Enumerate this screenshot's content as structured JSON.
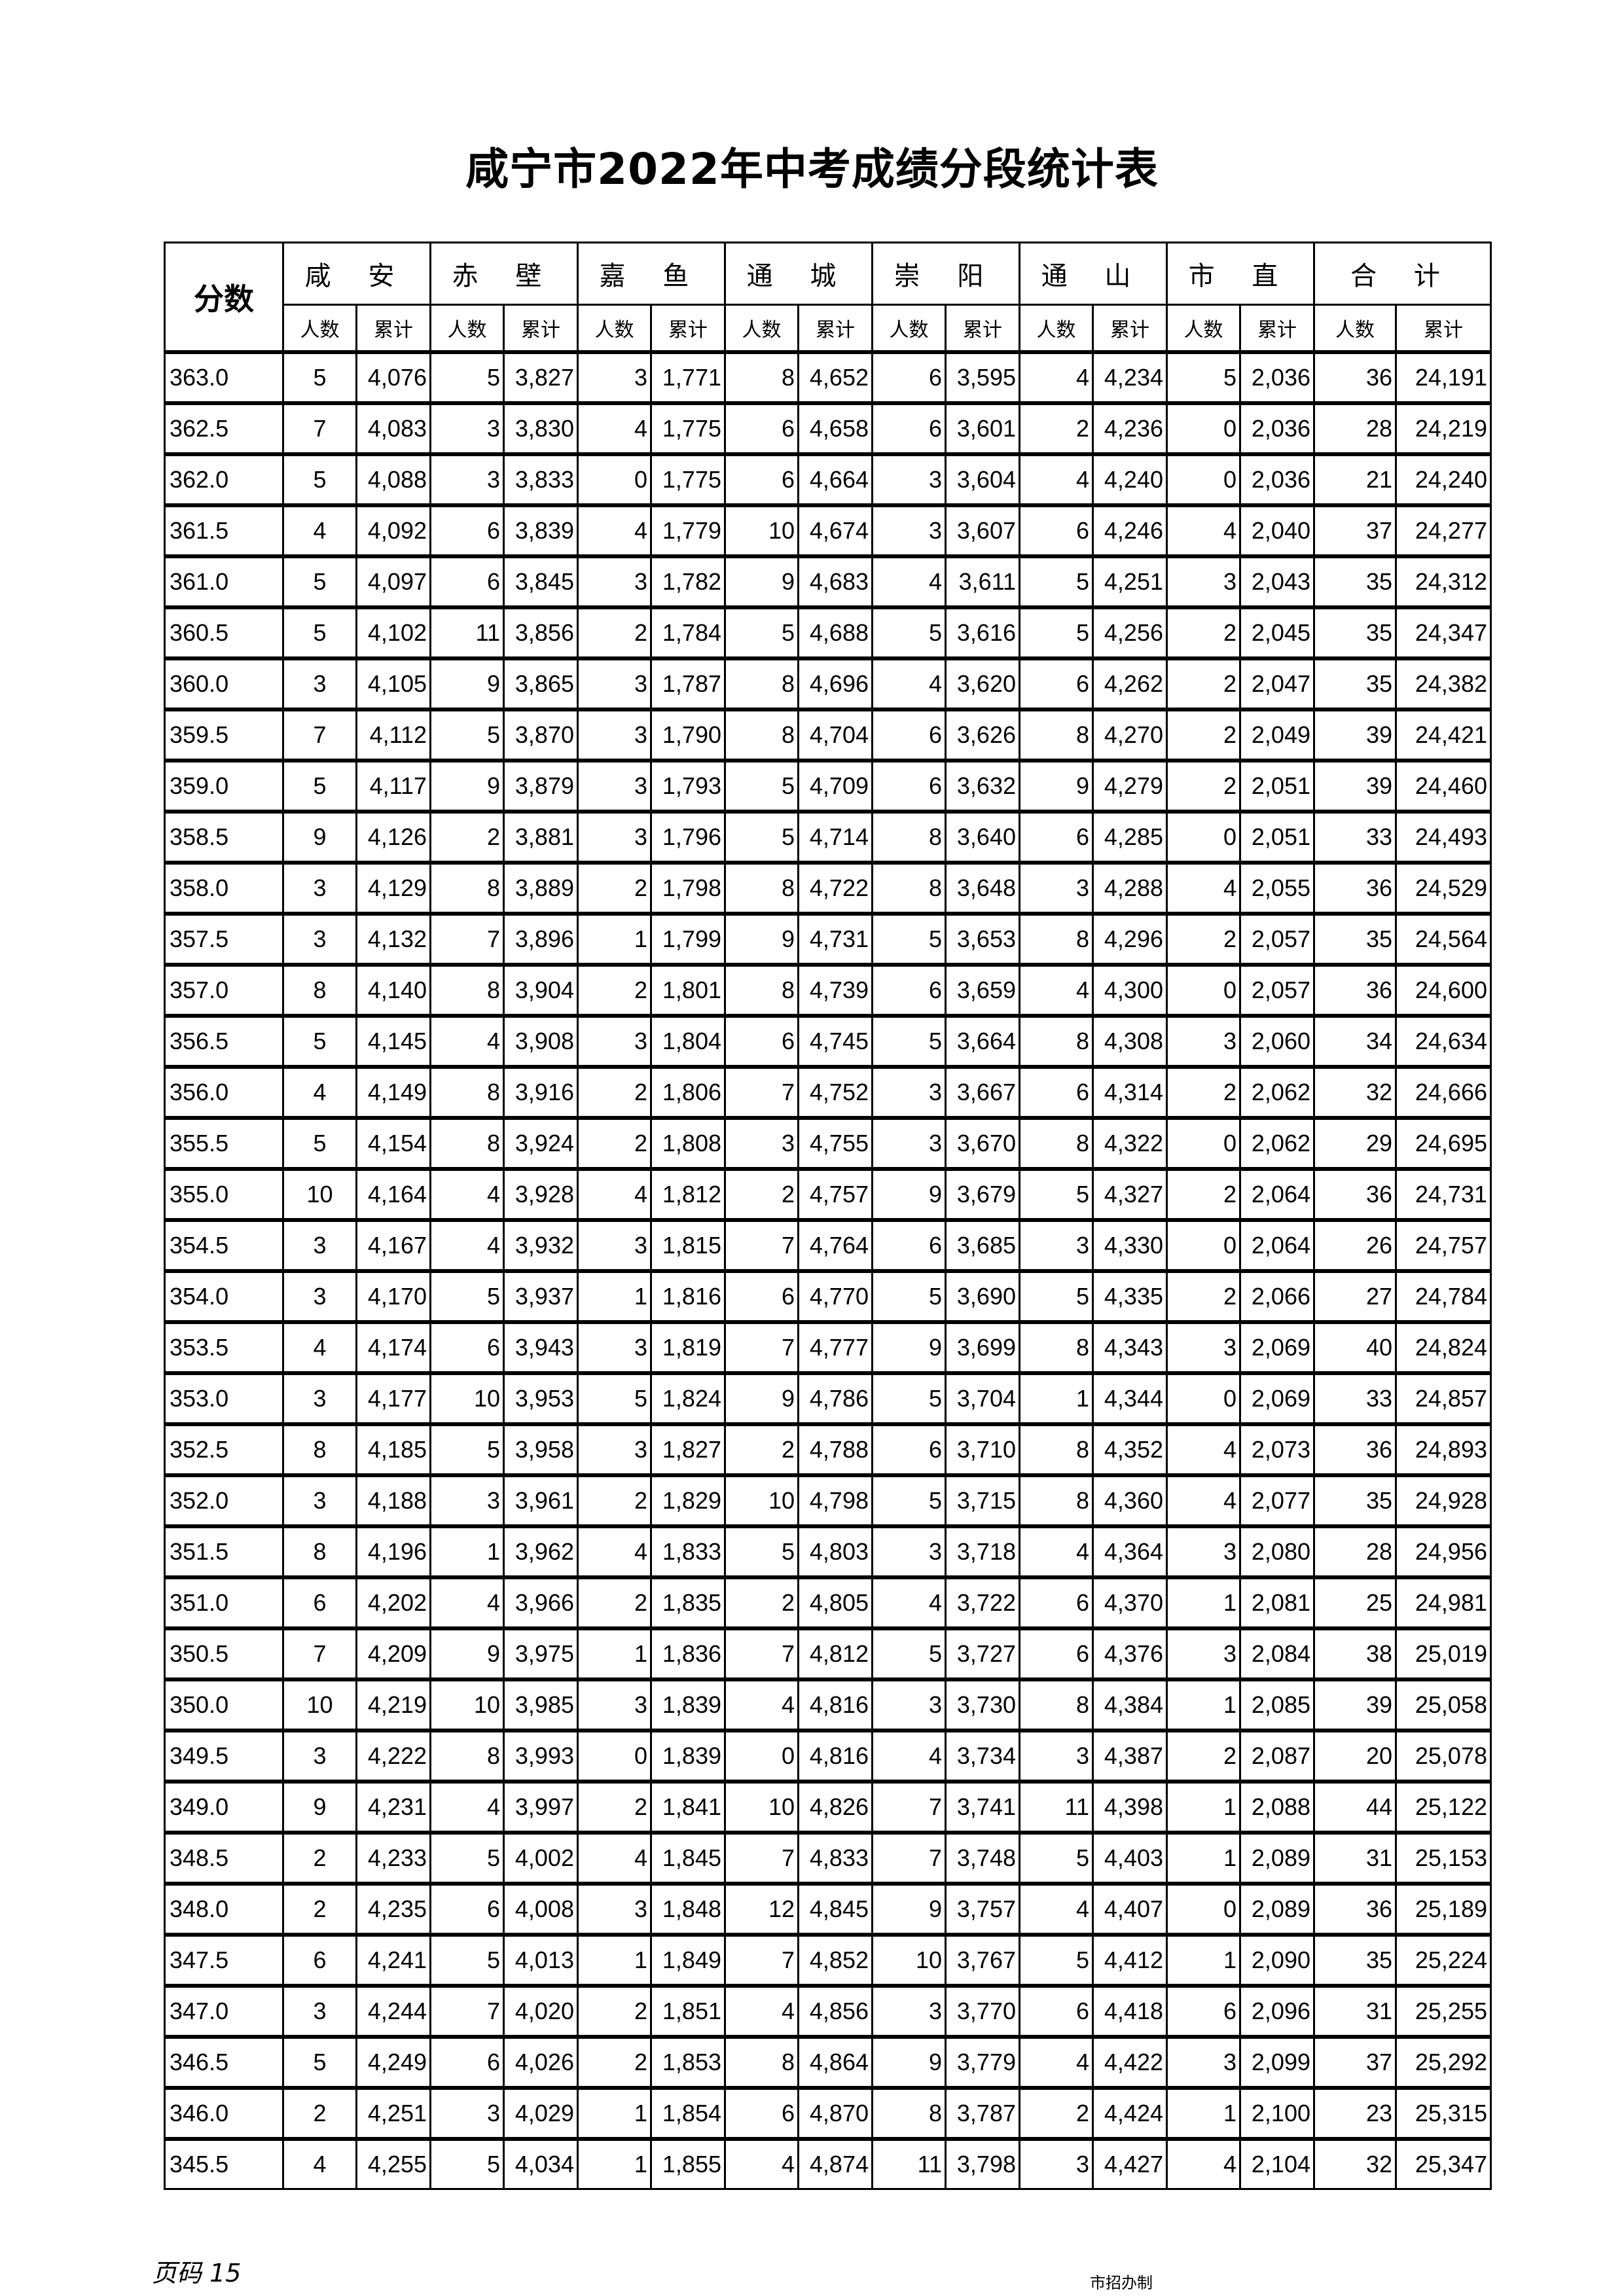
{
  "title": "咸宁市2022年中考成绩分段统计表",
  "table": {
    "score_header": "分数",
    "regions": [
      "咸 安",
      "赤 壁",
      "嘉 鱼",
      "通 城",
      "崇 阳",
      "通 山",
      "市 直",
      "合 计"
    ],
    "sub_headers": [
      "人数",
      "累计"
    ],
    "rows": [
      [
        "363.0",
        "5",
        "4,076",
        "5",
        "3,827",
        "3",
        "1,771",
        "8",
        "4,652",
        "6",
        "3,595",
        "4",
        "4,234",
        "5",
        "2,036",
        "36",
        "24,191"
      ],
      [
        "362.5",
        "7",
        "4,083",
        "3",
        "3,830",
        "4",
        "1,775",
        "6",
        "4,658",
        "6",
        "3,601",
        "2",
        "4,236",
        "0",
        "2,036",
        "28",
        "24,219"
      ],
      [
        "362.0",
        "5",
        "4,088",
        "3",
        "3,833",
        "0",
        "1,775",
        "6",
        "4,664",
        "3",
        "3,604",
        "4",
        "4,240",
        "0",
        "2,036",
        "21",
        "24,240"
      ],
      [
        "361.5",
        "4",
        "4,092",
        "6",
        "3,839",
        "4",
        "1,779",
        "10",
        "4,674",
        "3",
        "3,607",
        "6",
        "4,246",
        "4",
        "2,040",
        "37",
        "24,277"
      ],
      [
        "361.0",
        "5",
        "4,097",
        "6",
        "3,845",
        "3",
        "1,782",
        "9",
        "4,683",
        "4",
        "3,611",
        "5",
        "4,251",
        "3",
        "2,043",
        "35",
        "24,312"
      ],
      [
        "360.5",
        "5",
        "4,102",
        "11",
        "3,856",
        "2",
        "1,784",
        "5",
        "4,688",
        "5",
        "3,616",
        "5",
        "4,256",
        "2",
        "2,045",
        "35",
        "24,347"
      ],
      [
        "360.0",
        "3",
        "4,105",
        "9",
        "3,865",
        "3",
        "1,787",
        "8",
        "4,696",
        "4",
        "3,620",
        "6",
        "4,262",
        "2",
        "2,047",
        "35",
        "24,382"
      ],
      [
        "359.5",
        "7",
        "4,112",
        "5",
        "3,870",
        "3",
        "1,790",
        "8",
        "4,704",
        "6",
        "3,626",
        "8",
        "4,270",
        "2",
        "2,049",
        "39",
        "24,421"
      ],
      [
        "359.0",
        "5",
        "4,117",
        "9",
        "3,879",
        "3",
        "1,793",
        "5",
        "4,709",
        "6",
        "3,632",
        "9",
        "4,279",
        "2",
        "2,051",
        "39",
        "24,460"
      ],
      [
        "358.5",
        "9",
        "4,126",
        "2",
        "3,881",
        "3",
        "1,796",
        "5",
        "4,714",
        "8",
        "3,640",
        "6",
        "4,285",
        "0",
        "2,051",
        "33",
        "24,493"
      ],
      [
        "358.0",
        "3",
        "4,129",
        "8",
        "3,889",
        "2",
        "1,798",
        "8",
        "4,722",
        "8",
        "3,648",
        "3",
        "4,288",
        "4",
        "2,055",
        "36",
        "24,529"
      ],
      [
        "357.5",
        "3",
        "4,132",
        "7",
        "3,896",
        "1",
        "1,799",
        "9",
        "4,731",
        "5",
        "3,653",
        "8",
        "4,296",
        "2",
        "2,057",
        "35",
        "24,564"
      ],
      [
        "357.0",
        "8",
        "4,140",
        "8",
        "3,904",
        "2",
        "1,801",
        "8",
        "4,739",
        "6",
        "3,659",
        "4",
        "4,300",
        "0",
        "2,057",
        "36",
        "24,600"
      ],
      [
        "356.5",
        "5",
        "4,145",
        "4",
        "3,908",
        "3",
        "1,804",
        "6",
        "4,745",
        "5",
        "3,664",
        "8",
        "4,308",
        "3",
        "2,060",
        "34",
        "24,634"
      ],
      [
        "356.0",
        "4",
        "4,149",
        "8",
        "3,916",
        "2",
        "1,806",
        "7",
        "4,752",
        "3",
        "3,667",
        "6",
        "4,314",
        "2",
        "2,062",
        "32",
        "24,666"
      ],
      [
        "355.5",
        "5",
        "4,154",
        "8",
        "3,924",
        "2",
        "1,808",
        "3",
        "4,755",
        "3",
        "3,670",
        "8",
        "4,322",
        "0",
        "2,062",
        "29",
        "24,695"
      ],
      [
        "355.0",
        "10",
        "4,164",
        "4",
        "3,928",
        "4",
        "1,812",
        "2",
        "4,757",
        "9",
        "3,679",
        "5",
        "4,327",
        "2",
        "2,064",
        "36",
        "24,731"
      ],
      [
        "354.5",
        "3",
        "4,167",
        "4",
        "3,932",
        "3",
        "1,815",
        "7",
        "4,764",
        "6",
        "3,685",
        "3",
        "4,330",
        "0",
        "2,064",
        "26",
        "24,757"
      ],
      [
        "354.0",
        "3",
        "4,170",
        "5",
        "3,937",
        "1",
        "1,816",
        "6",
        "4,770",
        "5",
        "3,690",
        "5",
        "4,335",
        "2",
        "2,066",
        "27",
        "24,784"
      ],
      [
        "353.5",
        "4",
        "4,174",
        "6",
        "3,943",
        "3",
        "1,819",
        "7",
        "4,777",
        "9",
        "3,699",
        "8",
        "4,343",
        "3",
        "2,069",
        "40",
        "24,824"
      ],
      [
        "353.0",
        "3",
        "4,177",
        "10",
        "3,953",
        "5",
        "1,824",
        "9",
        "4,786",
        "5",
        "3,704",
        "1",
        "4,344",
        "0",
        "2,069",
        "33",
        "24,857"
      ],
      [
        "352.5",
        "8",
        "4,185",
        "5",
        "3,958",
        "3",
        "1,827",
        "2",
        "4,788",
        "6",
        "3,710",
        "8",
        "4,352",
        "4",
        "2,073",
        "36",
        "24,893"
      ],
      [
        "352.0",
        "3",
        "4,188",
        "3",
        "3,961",
        "2",
        "1,829",
        "10",
        "4,798",
        "5",
        "3,715",
        "8",
        "4,360",
        "4",
        "2,077",
        "35",
        "24,928"
      ],
      [
        "351.5",
        "8",
        "4,196",
        "1",
        "3,962",
        "4",
        "1,833",
        "5",
        "4,803",
        "3",
        "3,718",
        "4",
        "4,364",
        "3",
        "2,080",
        "28",
        "24,956"
      ],
      [
        "351.0",
        "6",
        "4,202",
        "4",
        "3,966",
        "2",
        "1,835",
        "2",
        "4,805",
        "4",
        "3,722",
        "6",
        "4,370",
        "1",
        "2,081",
        "25",
        "24,981"
      ],
      [
        "350.5",
        "7",
        "4,209",
        "9",
        "3,975",
        "1",
        "1,836",
        "7",
        "4,812",
        "5",
        "3,727",
        "6",
        "4,376",
        "3",
        "2,084",
        "38",
        "25,019"
      ],
      [
        "350.0",
        "10",
        "4,219",
        "10",
        "3,985",
        "3",
        "1,839",
        "4",
        "4,816",
        "3",
        "3,730",
        "8",
        "4,384",
        "1",
        "2,085",
        "39",
        "25,058"
      ],
      [
        "349.5",
        "3",
        "4,222",
        "8",
        "3,993",
        "0",
        "1,839",
        "0",
        "4,816",
        "4",
        "3,734",
        "3",
        "4,387",
        "2",
        "2,087",
        "20",
        "25,078"
      ],
      [
        "349.0",
        "9",
        "4,231",
        "4",
        "3,997",
        "2",
        "1,841",
        "10",
        "4,826",
        "7",
        "3,741",
        "11",
        "4,398",
        "1",
        "2,088",
        "44",
        "25,122"
      ],
      [
        "348.5",
        "2",
        "4,233",
        "5",
        "4,002",
        "4",
        "1,845",
        "7",
        "4,833",
        "7",
        "3,748",
        "5",
        "4,403",
        "1",
        "2,089",
        "31",
        "25,153"
      ],
      [
        "348.0",
        "2",
        "4,235",
        "6",
        "4,008",
        "3",
        "1,848",
        "12",
        "4,845",
        "9",
        "3,757",
        "4",
        "4,407",
        "0",
        "2,089",
        "36",
        "25,189"
      ],
      [
        "347.5",
        "6",
        "4,241",
        "5",
        "4,013",
        "1",
        "1,849",
        "7",
        "4,852",
        "10",
        "3,767",
        "5",
        "4,412",
        "1",
        "2,090",
        "35",
        "25,224"
      ],
      [
        "347.0",
        "3",
        "4,244",
        "7",
        "4,020",
        "2",
        "1,851",
        "4",
        "4,856",
        "3",
        "3,770",
        "6",
        "4,418",
        "6",
        "2,096",
        "31",
        "25,255"
      ],
      [
        "346.5",
        "5",
        "4,249",
        "6",
        "4,026",
        "2",
        "1,853",
        "8",
        "4,864",
        "9",
        "3,779",
        "4",
        "4,422",
        "3",
        "2,099",
        "37",
        "25,292"
      ],
      [
        "346.0",
        "2",
        "4,251",
        "3",
        "4,029",
        "1",
        "1,854",
        "6",
        "4,870",
        "8",
        "3,787",
        "2",
        "4,424",
        "1",
        "2,100",
        "23",
        "25,315"
      ],
      [
        "345.5",
        "4",
        "4,255",
        "5",
        "4,034",
        "1",
        "1,855",
        "4",
        "4,874",
        "11",
        "3,798",
        "3",
        "4,427",
        "4",
        "2,104",
        "32",
        "25,347"
      ]
    ]
  },
  "footer": {
    "page_number": "页码 15",
    "maker": "市招办制"
  }
}
